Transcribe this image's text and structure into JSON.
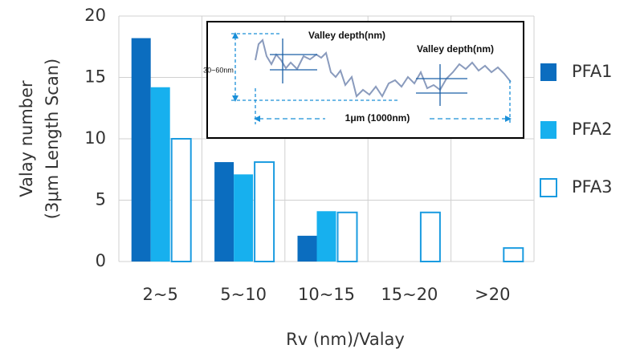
{
  "chart_data": {
    "type": "bar",
    "ylabel": [
      "Valay number",
      "(3μm Length Scan)"
    ],
    "xlabel": "Rv (nm)/Valay",
    "categories": [
      "2~5",
      "5~10",
      "10~15",
      "15~20",
      ">20"
    ],
    "series": [
      {
        "name": "PFA1",
        "color": "#0b6dbf",
        "values": [
          18.2,
          8.1,
          2.1,
          0,
          0
        ]
      },
      {
        "name": "PFA2",
        "color": "#17b0ee",
        "values": [
          14.2,
          7.1,
          4.1,
          0,
          0
        ]
      },
      {
        "name": "PFA3",
        "color": "#1a9be0",
        "outline": true,
        "values": [
          10,
          8.1,
          4,
          4,
          1.1
        ]
      }
    ],
    "ylim": [
      0,
      20
    ],
    "yticks": [
      0,
      5,
      10,
      15,
      20
    ],
    "grid": true,
    "legend": "right",
    "annotations": [
      "Valley depth(nm)",
      "Valley depth(nm)",
      "30~60nm",
      "1μm (1000nm)"
    ]
  }
}
